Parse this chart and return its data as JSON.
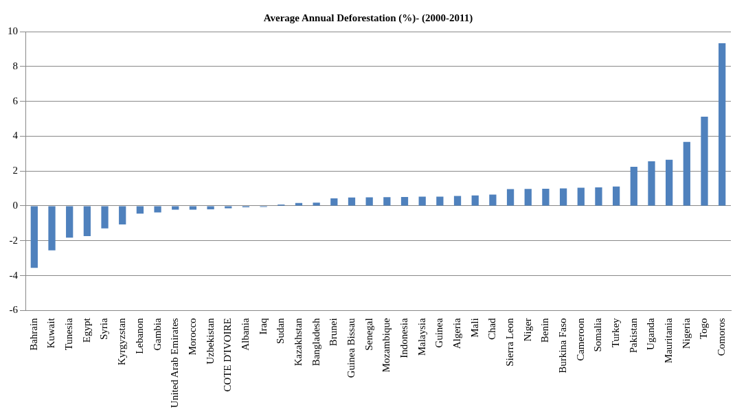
{
  "chart_data": {
    "type": "bar",
    "title": "Average Annual Deforestation (%)- (2000-2011)",
    "categories": [
      "Bahrain",
      "Kuwait",
      "Tunesia",
      "Egypt",
      "Syria",
      "Kyrgyzstan",
      "Lebanon",
      "Gambia",
      "United Arab Emirates",
      "Morocco",
      "Uzbekistan",
      "COTE D'IVOIRE",
      "Albania",
      "Iraq",
      "Sudan",
      "Kazakhstan",
      "Bangladesh",
      "Brunei",
      "Guinea Bissau",
      "Senegal",
      "Mozambique",
      "Indonesia",
      "Malaysia",
      "Guinea",
      "Algeria",
      "Mali",
      "Chad",
      "Sierra Leon",
      "Niger",
      "Benin",
      "Burkina Faso",
      "Cameroon",
      "Somalia",
      "Turkey",
      "Pakistan",
      "Uganda",
      "Mauritania",
      "Nigeria",
      "Togo",
      "Comoros"
    ],
    "values": [
      -3.55,
      -2.55,
      -1.82,
      -1.73,
      -1.29,
      -1.06,
      -0.44,
      -0.37,
      -0.22,
      -0.22,
      -0.2,
      -0.14,
      -0.08,
      -0.06,
      0.08,
      0.17,
      0.19,
      0.43,
      0.48,
      0.49,
      0.5,
      0.51,
      0.53,
      0.53,
      0.57,
      0.6,
      0.65,
      0.96,
      0.97,
      0.98,
      1.0,
      1.04,
      1.06,
      1.11,
      2.24,
      2.56,
      2.65,
      3.67,
      5.12,
      9.33
    ],
    "color": "#4f81bd",
    "ylim": [
      -6,
      10
    ],
    "yticks": [
      -6,
      -4,
      -2,
      0,
      2,
      4,
      6,
      8,
      10
    ],
    "grid": "y"
  }
}
